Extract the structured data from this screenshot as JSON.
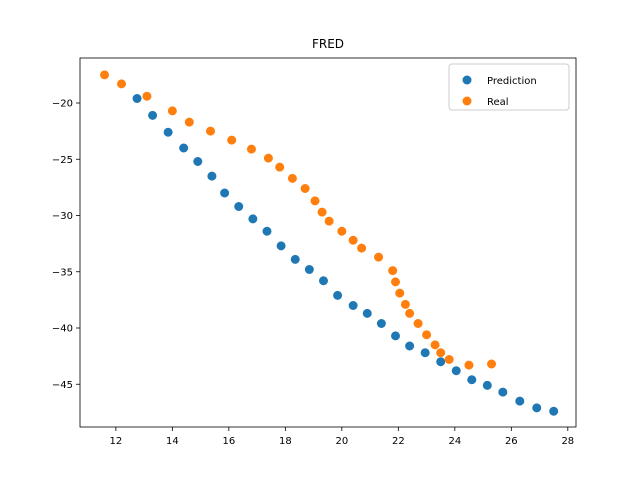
{
  "chart_data": {
    "type": "scatter",
    "title": "FRED",
    "xlabel": "",
    "ylabel": "",
    "xlim": [
      10.73,
      28.29
    ],
    "ylim": [
      -48.8,
      -16.0
    ],
    "xticks": [
      12,
      14,
      16,
      18,
      20,
      22,
      24,
      26,
      28
    ],
    "yticks": [
      -20,
      -25,
      -30,
      -35,
      -40,
      -45
    ],
    "grid": false,
    "legend_position": "upper right",
    "series": [
      {
        "name": "Prediction",
        "color": "#1f77b4",
        "x": [
          12.75,
          13.3,
          13.85,
          14.4,
          14.9,
          15.4,
          15.85,
          16.35,
          16.85,
          17.35,
          17.85,
          18.35,
          18.85,
          19.35,
          19.85,
          20.4,
          20.9,
          21.4,
          21.9,
          22.4,
          22.95,
          23.5,
          24.05,
          24.6,
          25.15,
          25.7,
          26.3,
          26.9,
          27.5
        ],
        "y": [
          -19.6,
          -21.1,
          -22.6,
          -24.0,
          -25.2,
          -26.5,
          -28.0,
          -29.2,
          -30.3,
          -31.4,
          -32.7,
          -33.9,
          -34.8,
          -35.8,
          -37.1,
          -38.0,
          -38.7,
          -39.6,
          -40.7,
          -41.6,
          -42.2,
          -43.0,
          -43.8,
          -44.6,
          -45.1,
          -45.7,
          -46.5,
          -47.1,
          -47.4
        ]
      },
      {
        "name": "Real",
        "color": "#ff7f0e",
        "x": [
          11.6,
          12.2,
          13.1,
          14.0,
          14.6,
          15.35,
          16.1,
          16.8,
          17.4,
          17.8,
          18.25,
          18.7,
          19.05,
          19.3,
          19.55,
          20.0,
          20.4,
          20.7,
          21.3,
          21.8,
          21.9,
          22.05,
          22.25,
          22.4,
          22.7,
          23.0,
          23.3,
          23.5,
          23.8,
          24.5,
          25.3
        ],
        "y": [
          -17.5,
          -18.3,
          -19.4,
          -20.7,
          -21.7,
          -22.5,
          -23.3,
          -24.1,
          -24.9,
          -25.7,
          -26.7,
          -27.6,
          -28.7,
          -29.7,
          -30.5,
          -31.4,
          -32.2,
          -32.9,
          -33.7,
          -34.9,
          -35.9,
          -36.9,
          -37.9,
          -38.7,
          -39.6,
          -40.6,
          -41.5,
          -42.2,
          -42.8,
          -43.3,
          -43.2
        ]
      }
    ]
  }
}
